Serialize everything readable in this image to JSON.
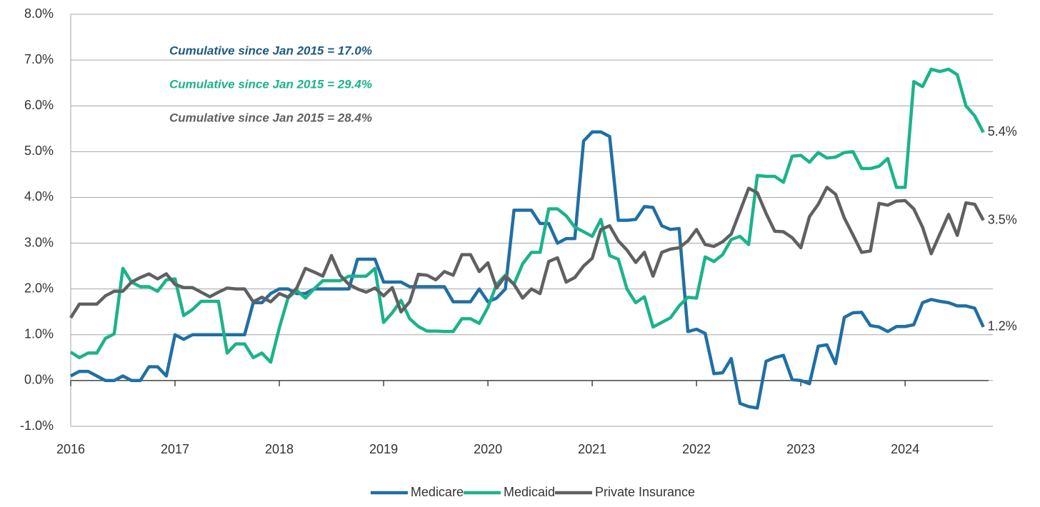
{
  "chart_data": {
    "type": "line",
    "annotations": [
      {
        "text": "Cumulative since Jan 2015 = 17.0%",
        "color": "#1d5a7e"
      },
      {
        "text": "Cumulative since Jan 2015 = 29.4%",
        "color": "#1bb38a"
      },
      {
        "text": "Cumulative since Jan 2015 = 28.4%",
        "color": "#5f6062"
      }
    ],
    "x": [
      2016,
      2016.083,
      2016.167,
      2016.25,
      2016.333,
      2016.417,
      2016.5,
      2016.583,
      2016.667,
      2016.75,
      2016.833,
      2016.917,
      2017,
      2017.083,
      2017.167,
      2017.25,
      2017.333,
      2017.417,
      2017.5,
      2017.583,
      2017.667,
      2017.75,
      2017.833,
      2017.917,
      2018,
      2018.083,
      2018.167,
      2018.25,
      2018.333,
      2018.417,
      2018.5,
      2018.583,
      2018.667,
      2018.75,
      2018.833,
      2018.917,
      2019,
      2019.083,
      2019.167,
      2019.25,
      2019.333,
      2019.417,
      2019.5,
      2019.583,
      2019.667,
      2019.75,
      2019.833,
      2019.917,
      2020,
      2020.083,
      2020.167,
      2020.25,
      2020.333,
      2020.417,
      2020.5,
      2020.583,
      2020.667,
      2020.75,
      2020.833,
      2020.917,
      2021,
      2021.083,
      2021.167,
      2021.25,
      2021.333,
      2021.417,
      2021.5,
      2021.583,
      2021.667,
      2021.75,
      2021.833,
      2021.917,
      2022,
      2022.083,
      2022.167,
      2022.25,
      2022.333,
      2022.417,
      2022.5,
      2022.583,
      2022.667,
      2022.75,
      2022.833,
      2022.917,
      2023,
      2023.083,
      2023.167,
      2023.25,
      2023.333,
      2023.417,
      2023.5,
      2023.583,
      2023.667,
      2023.75,
      2023.833,
      2023.917,
      2024,
      2024.083,
      2024.167,
      2024.25,
      2024.333,
      2024.417,
      2024.5,
      2024.583,
      2024.667,
      2024.75
    ],
    "series": [
      {
        "name": "Medicare",
        "color": "#1f6fa5",
        "end_label": "1.2%",
        "values": [
          0.1,
          0.2,
          0.2,
          0.1,
          0.0,
          0.0,
          0.1,
          0.0,
          0.0,
          0.3,
          0.3,
          0.1,
          1.0,
          0.9,
          1.0,
          1.0,
          1.0,
          1.0,
          1.0,
          1.0,
          1.0,
          1.7,
          1.7,
          1.9,
          2.0,
          2.0,
          1.9,
          1.9,
          2.0,
          2.0,
          2.0,
          2.0,
          2.0,
          2.65,
          2.65,
          2.65,
          2.15,
          2.15,
          2.15,
          2.05,
          2.05,
          2.05,
          2.05,
          2.05,
          1.72,
          1.72,
          1.72,
          2.0,
          1.72,
          1.8,
          2.0,
          3.72,
          3.72,
          3.72,
          3.43,
          3.43,
          3.0,
          3.1,
          3.1,
          5.23,
          5.43,
          5.43,
          5.33,
          3.5,
          3.5,
          3.52,
          3.8,
          3.78,
          3.38,
          3.3,
          3.32,
          1.07,
          1.12,
          1.03,
          0.15,
          0.17,
          0.48,
          -0.5,
          -0.57,
          -0.6,
          0.42,
          0.5,
          0.55,
          0.02,
          0.0,
          -0.07,
          0.75,
          0.78,
          0.37,
          1.38,
          1.48,
          1.49,
          1.2,
          1.17,
          1.07,
          1.18,
          1.18,
          1.22,
          1.7,
          1.77,
          1.73,
          1.7,
          1.63,
          1.63,
          1.58,
          1.17
        ]
      },
      {
        "name": "Medicaid",
        "color": "#1bb38a",
        "end_label": "5.4%",
        "values": [
          0.62,
          0.5,
          0.6,
          0.6,
          0.92,
          1.02,
          2.45,
          2.15,
          2.05,
          2.05,
          1.95,
          2.2,
          2.22,
          1.42,
          1.55,
          1.73,
          1.73,
          1.73,
          0.6,
          0.8,
          0.8,
          0.5,
          0.6,
          0.4,
          1.15,
          1.8,
          1.97,
          1.8,
          2.0,
          2.18,
          2.18,
          2.18,
          2.28,
          2.28,
          2.28,
          2.45,
          1.27,
          1.48,
          1.75,
          1.35,
          1.18,
          1.08,
          1.08,
          1.07,
          1.07,
          1.35,
          1.35,
          1.25,
          1.6,
          2.1,
          2.3,
          2.1,
          2.55,
          2.8,
          2.8,
          3.75,
          3.75,
          3.6,
          3.35,
          3.25,
          3.15,
          3.52,
          2.73,
          2.65,
          2.0,
          1.7,
          1.83,
          1.17,
          1.27,
          1.37,
          1.63,
          1.82,
          1.8,
          2.7,
          2.6,
          2.75,
          3.08,
          3.15,
          2.97,
          4.48,
          4.46,
          4.46,
          4.33,
          4.9,
          4.92,
          4.77,
          4.98,
          4.86,
          4.88,
          4.98,
          5.0,
          4.63,
          4.63,
          4.68,
          4.85,
          4.22,
          4.22,
          6.53,
          6.42,
          6.8,
          6.75,
          6.8,
          6.68,
          6.0,
          5.78,
          5.42
        ]
      },
      {
        "name": "Private Insurance",
        "color": "#5f6062",
        "end_label": "3.5%",
        "values": [
          1.37,
          1.67,
          1.67,
          1.67,
          1.85,
          1.95,
          1.95,
          2.15,
          2.25,
          2.33,
          2.22,
          2.33,
          2.1,
          2.03,
          2.03,
          1.93,
          1.83,
          1.93,
          2.02,
          2.0,
          2.0,
          1.72,
          1.82,
          1.72,
          1.9,
          1.82,
          2.02,
          2.45,
          2.37,
          2.28,
          2.73,
          2.3,
          2.1,
          2.0,
          1.93,
          2.02,
          1.85,
          2.03,
          1.5,
          1.72,
          2.32,
          2.3,
          2.2,
          2.38,
          2.3,
          2.75,
          2.75,
          2.38,
          2.57,
          2.02,
          2.28,
          2.1,
          1.8,
          2.0,
          1.9,
          2.6,
          2.68,
          2.15,
          2.25,
          2.5,
          2.67,
          3.3,
          3.38,
          3.05,
          2.85,
          2.58,
          2.8,
          2.28,
          2.8,
          2.87,
          2.9,
          3.05,
          3.3,
          2.97,
          2.93,
          3.03,
          3.2,
          3.7,
          4.2,
          4.1,
          3.65,
          3.26,
          3.25,
          3.12,
          2.9,
          3.58,
          3.85,
          4.22,
          4.07,
          3.55,
          3.18,
          2.8,
          2.83,
          3.87,
          3.83,
          3.92,
          3.93,
          3.75,
          3.35,
          2.77,
          3.2,
          3.63,
          3.17,
          3.88,
          3.85,
          3.5
        ]
      }
    ],
    "xlim": [
      2016,
      2024.8
    ],
    "xticks": [
      2016,
      2017,
      2018,
      2019,
      2020,
      2021,
      2022,
      2023,
      2024
    ],
    "ylim": [
      -1,
      8
    ],
    "yticks": [
      {
        "value": -1,
        "label": "-1.0%"
      },
      {
        "value": 0,
        "label": "0.0%"
      },
      {
        "value": 1,
        "label": "1.0%"
      },
      {
        "value": 2,
        "label": "2.0%"
      },
      {
        "value": 3,
        "label": "3.0%"
      },
      {
        "value": 4,
        "label": "4.0%"
      },
      {
        "value": 5,
        "label": "5.0%"
      },
      {
        "value": 6,
        "label": "6.0%"
      },
      {
        "value": 7,
        "label": "7.0%"
      },
      {
        "value": 8,
        "label": "8.0%"
      }
    ],
    "grid": true,
    "legend": "bottom"
  }
}
